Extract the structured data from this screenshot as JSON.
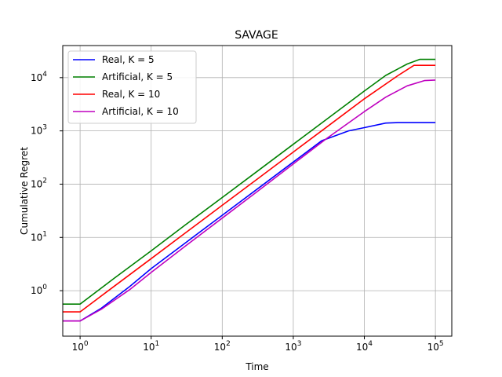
{
  "chart_data": {
    "type": "line",
    "title": "SAVAGE",
    "xlabel": "Time",
    "ylabel": "Cumulative Regret",
    "xscale": "log",
    "yscale": "log",
    "xlim": [
      0.57,
      170000
    ],
    "ylim": [
      0.14,
      40000
    ],
    "grid": true,
    "legend_position": "top-left",
    "x_ticks": [
      {
        "value": 1,
        "base": "10",
        "exp": "0"
      },
      {
        "value": 10,
        "base": "10",
        "exp": "1"
      },
      {
        "value": 100,
        "base": "10",
        "exp": "2"
      },
      {
        "value": 1000,
        "base": "10",
        "exp": "3"
      },
      {
        "value": 10000,
        "base": "10",
        "exp": "4"
      },
      {
        "value": 100000,
        "base": "10",
        "exp": "5"
      }
    ],
    "y_ticks": [
      {
        "value": 1,
        "base": "10",
        "exp": "0"
      },
      {
        "value": 10,
        "base": "10",
        "exp": "1"
      },
      {
        "value": 100,
        "base": "10",
        "exp": "2"
      },
      {
        "value": 1000,
        "base": "10",
        "exp": "3"
      },
      {
        "value": 10000,
        "base": "10",
        "exp": "4"
      }
    ],
    "series": [
      {
        "name": "Real, K = 5",
        "color": "#0000ff",
        "points": [
          [
            0.57,
            0.27
          ],
          [
            1,
            0.27
          ],
          [
            2,
            0.47
          ],
          [
            5,
            1.2
          ],
          [
            10,
            2.6
          ],
          [
            30,
            7.8
          ],
          [
            100,
            26
          ],
          [
            300,
            78
          ],
          [
            1000,
            260
          ],
          [
            2500,
            650
          ],
          [
            6000,
            1000
          ],
          [
            10000,
            1150
          ],
          [
            20000,
            1400
          ],
          [
            30000,
            1430
          ],
          [
            100000,
            1430
          ]
        ]
      },
      {
        "name": "Artificial, K = 5",
        "color": "#008000",
        "points": [
          [
            0.57,
            0.56
          ],
          [
            1,
            0.56
          ],
          [
            3,
            1.7
          ],
          [
            10,
            5.6
          ],
          [
            30,
            17
          ],
          [
            100,
            56
          ],
          [
            300,
            168
          ],
          [
            1000,
            560
          ],
          [
            3000,
            1680
          ],
          [
            10000,
            5600
          ],
          [
            20000,
            11000
          ],
          [
            40000,
            18000
          ],
          [
            60000,
            22000
          ],
          [
            100000,
            22000
          ]
        ]
      },
      {
        "name": "Real, K = 10",
        "color": "#ff0000",
        "points": [
          [
            0.57,
            0.4
          ],
          [
            1,
            0.4
          ],
          [
            3,
            1.2
          ],
          [
            10,
            4
          ],
          [
            30,
            12
          ],
          [
            100,
            40
          ],
          [
            300,
            120
          ],
          [
            1000,
            400
          ],
          [
            3000,
            1200
          ],
          [
            10000,
            4000
          ],
          [
            30000,
            11000
          ],
          [
            50000,
            17000
          ],
          [
            100000,
            17000
          ]
        ]
      },
      {
        "name": "Artificial, K = 10",
        "color": "#bf00bf",
        "points": [
          [
            0.57,
            0.27
          ],
          [
            1,
            0.27
          ],
          [
            2,
            0.45
          ],
          [
            5,
            1.05
          ],
          [
            10,
            2.2
          ],
          [
            30,
            6.8
          ],
          [
            100,
            23
          ],
          [
            300,
            70
          ],
          [
            1000,
            240
          ],
          [
            3000,
            730
          ],
          [
            10000,
            2300
          ],
          [
            20000,
            4300
          ],
          [
            40000,
            7000
          ],
          [
            70000,
            8800
          ],
          [
            100000,
            9000
          ]
        ]
      }
    ]
  }
}
